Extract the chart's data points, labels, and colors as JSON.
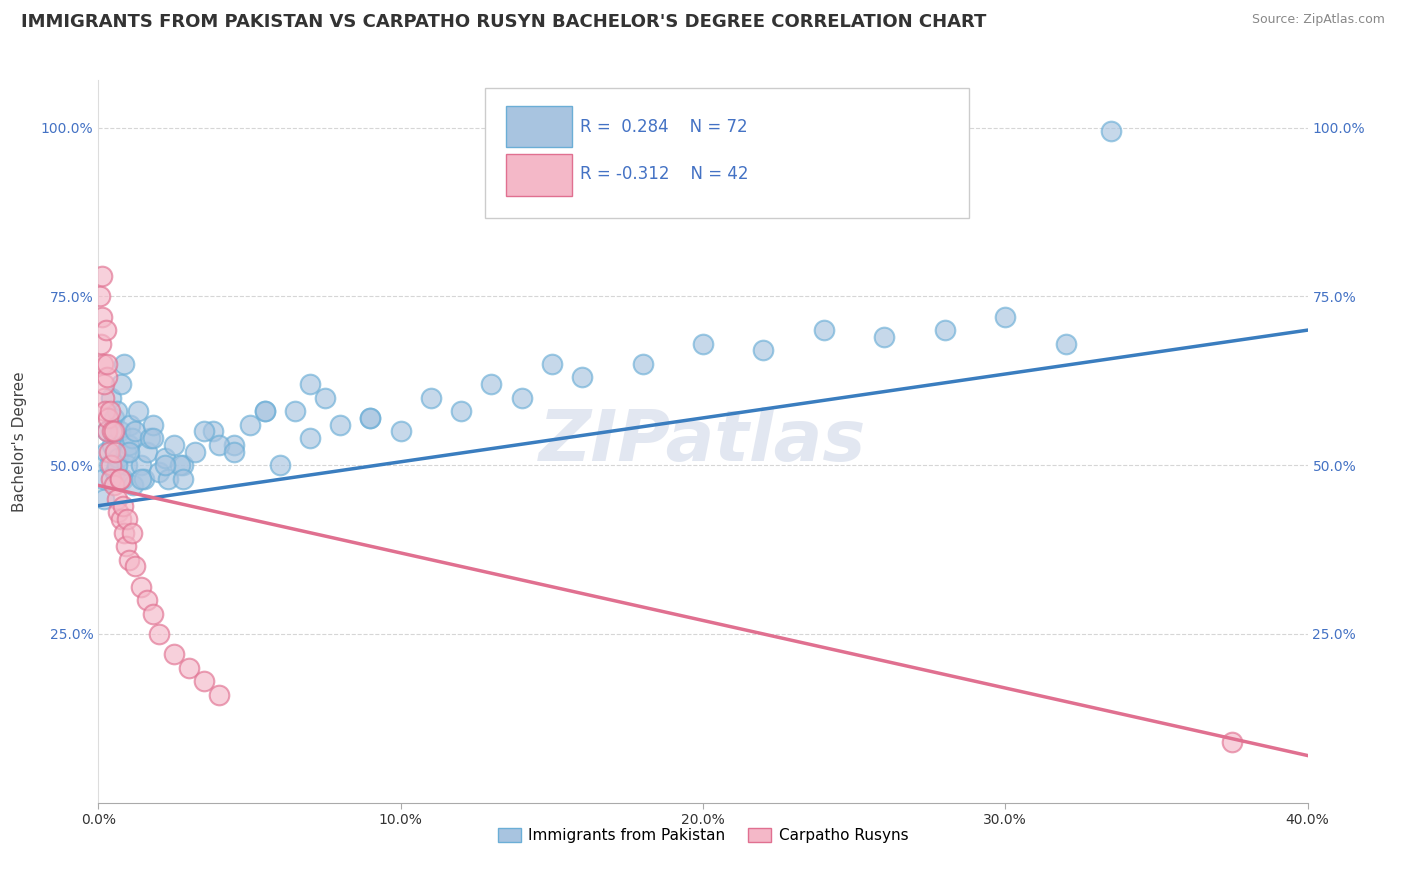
{
  "title": "IMMIGRANTS FROM PAKISTAN VS CARPATHO RUSYN BACHELOR'S DEGREE CORRELATION CHART",
  "source_text": "Source: ZipAtlas.com",
  "ylabel": "Bachelor's Degree",
  "x_min": 0.0,
  "x_max": 40.0,
  "y_min": 0.0,
  "y_max": 107.0,
  "watermark": "ZIPatlas",
  "legend_entries": [
    {
      "label": "Immigrants from Pakistan",
      "color": "#a8c4e0",
      "R": 0.284,
      "N": 72
    },
    {
      "label": "Carpatho Rusyns",
      "color": "#f4b8c8",
      "R": -0.312,
      "N": 42
    }
  ],
  "blue_scatter_x": [
    0.15,
    0.25,
    0.3,
    0.35,
    0.4,
    0.45,
    0.5,
    0.55,
    0.6,
    0.65,
    0.7,
    0.75,
    0.8,
    0.85,
    0.9,
    0.95,
    1.0,
    1.05,
    1.1,
    1.15,
    1.2,
    1.3,
    1.4,
    1.5,
    1.6,
    1.7,
    1.8,
    2.0,
    2.2,
    2.5,
    2.8,
    3.2,
    3.8,
    4.5,
    5.0,
    5.5,
    6.0,
    7.0,
    8.0,
    9.0,
    10.0,
    11.0,
    12.0,
    13.0,
    14.0,
    15.0,
    16.0,
    18.0,
    20.0,
    22.0,
    24.0,
    26.0,
    28.0,
    30.0,
    32.0,
    2.3,
    2.7,
    4.0,
    6.5,
    7.5,
    0.2,
    0.6,
    1.0,
    1.4,
    1.8,
    2.2,
    2.8,
    3.5,
    4.5,
    5.5,
    7.0,
    9.0
  ],
  "blue_scatter_y": [
    48,
    52,
    55,
    50,
    60,
    53,
    57,
    49,
    58,
    51,
    55,
    62,
    48,
    65,
    52,
    50,
    53,
    56,
    54,
    47,
    55,
    58,
    50,
    48,
    52,
    54,
    56,
    49,
    51,
    53,
    50,
    52,
    55,
    53,
    56,
    58,
    50,
    54,
    56,
    57,
    55,
    60,
    58,
    62,
    60,
    65,
    63,
    65,
    68,
    67,
    70,
    69,
    70,
    72,
    68,
    48,
    50,
    53,
    58,
    60,
    45,
    50,
    52,
    48,
    54,
    50,
    48,
    55,
    52,
    58,
    62,
    57
  ],
  "blue_outlier_x": [
    33.5
  ],
  "blue_outlier_y": [
    99.5
  ],
  "pink_scatter_x": [
    0.05,
    0.1,
    0.12,
    0.15,
    0.18,
    0.2,
    0.22,
    0.25,
    0.28,
    0.3,
    0.32,
    0.35,
    0.38,
    0.4,
    0.42,
    0.45,
    0.5,
    0.55,
    0.6,
    0.65,
    0.7,
    0.75,
    0.8,
    0.85,
    0.9,
    0.95,
    1.0,
    1.1,
    1.2,
    1.4,
    1.6,
    1.8,
    2.0,
    2.5,
    3.0,
    3.5,
    4.0,
    0.12,
    0.3,
    0.5,
    0.7,
    37.5
  ],
  "pink_scatter_y": [
    75,
    68,
    72,
    65,
    60,
    62,
    58,
    70,
    55,
    63,
    57,
    52,
    58,
    50,
    48,
    55,
    47,
    52,
    45,
    43,
    48,
    42,
    44,
    40,
    38,
    42,
    36,
    40,
    35,
    32,
    30,
    28,
    25,
    22,
    20,
    18,
    16,
    78,
    65,
    55,
    48,
    9
  ],
  "blue_line_x": [
    0.0,
    40.0
  ],
  "blue_line_y": [
    44.0,
    70.0
  ],
  "pink_line_x": [
    0.0,
    40.0
  ],
  "pink_line_y": [
    47.0,
    7.0
  ],
  "blue_dot_color": "#a8c4e0",
  "blue_edge_color": "#6baed6",
  "pink_dot_color": "#f4b8c8",
  "pink_edge_color": "#e07090",
  "blue_line_color": "#3a7dbf",
  "pink_line_color": "#e07090",
  "title_fontsize": 13,
  "axis_label_fontsize": 11,
  "tick_fontsize": 10,
  "background_color": "#ffffff",
  "grid_color": "#cccccc",
  "watermark_color": "#d0d8e8",
  "watermark_fontsize": 52,
  "y_tick_vals": [
    25,
    50,
    75,
    100
  ],
  "x_tick_vals": [
    0,
    10,
    20,
    30,
    40
  ]
}
